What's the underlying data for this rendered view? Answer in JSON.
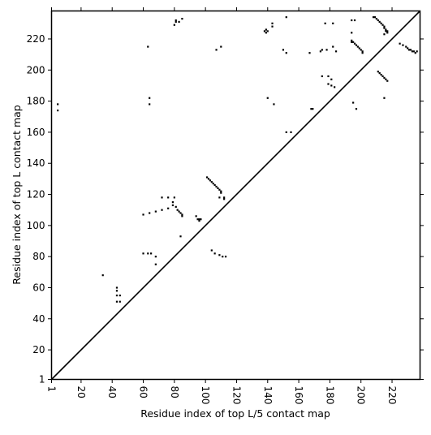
{
  "chart_data": {
    "type": "scatter",
    "title": "",
    "xlabel": "Residue index of top L/5 contact map",
    "ylabel": "Residue index of top L contact map",
    "xlim": [
      1,
      238
    ],
    "ylim": [
      1,
      238
    ],
    "xticks": [
      1,
      20,
      40,
      60,
      80,
      100,
      120,
      140,
      160,
      180,
      200,
      220
    ],
    "yticks": [
      1,
      20,
      40,
      60,
      80,
      100,
      120,
      140,
      160,
      180,
      200,
      220
    ],
    "x_tick_rotation": -90,
    "grid": false,
    "legend": "none",
    "colors": {
      "points": "#000000",
      "diagonal": "#000000",
      "frame": "#000000",
      "background": "#ffffff"
    },
    "diagonal": {
      "from": [
        1,
        1
      ],
      "to": [
        238,
        238
      ]
    },
    "series": [
      {
        "marker": "square",
        "points": [
          [
            5,
            178
          ],
          [
            5,
            174
          ],
          [
            34,
            68
          ],
          [
            43,
            60
          ],
          [
            43,
            58
          ],
          [
            43,
            55
          ],
          [
            45,
            55
          ],
          [
            43,
            51
          ],
          [
            45,
            51
          ],
          [
            60,
            107
          ],
          [
            64,
            108
          ],
          [
            68,
            109
          ],
          [
            72,
            110
          ],
          [
            76,
            111
          ],
          [
            72,
            118
          ],
          [
            76,
            118
          ],
          [
            80,
            118
          ],
          [
            79,
            115
          ],
          [
            79,
            113
          ],
          [
            81,
            112
          ],
          [
            82,
            110
          ],
          [
            83,
            109
          ],
          [
            84,
            108
          ],
          [
            85,
            107
          ],
          [
            85,
            106
          ],
          [
            60,
            82
          ],
          [
            63,
            82
          ],
          [
            65,
            82
          ],
          [
            68,
            80
          ],
          [
            68,
            75
          ],
          [
            84,
            93
          ],
          [
            94,
            106
          ],
          [
            95,
            104
          ],
          [
            96,
            104
          ],
          [
            97,
            104
          ],
          [
            96,
            103
          ],
          [
            101,
            131
          ],
          [
            102,
            130
          ],
          [
            103,
            129
          ],
          [
            104,
            128
          ],
          [
            105,
            127
          ],
          [
            106,
            126
          ],
          [
            107,
            125
          ],
          [
            108,
            124
          ],
          [
            109,
            123
          ],
          [
            110,
            122
          ],
          [
            110,
            121
          ],
          [
            109,
            118
          ],
          [
            112,
            118
          ],
          [
            112,
            117
          ],
          [
            104,
            84
          ],
          [
            106,
            82
          ],
          [
            109,
            81
          ],
          [
            111,
            80
          ],
          [
            113,
            80
          ],
          [
            63,
            215
          ],
          [
            64,
            182
          ],
          [
            64,
            178
          ],
          [
            80,
            229
          ],
          [
            81,
            232
          ],
          [
            81,
            231
          ],
          [
            83,
            231
          ],
          [
            85,
            233
          ],
          [
            107,
            213
          ],
          [
            110,
            215
          ],
          [
            138,
            225
          ],
          [
            139,
            226
          ],
          [
            139,
            224
          ],
          [
            140,
            225
          ],
          [
            140,
            182
          ],
          [
            143,
            228
          ],
          [
            143,
            230
          ],
          [
            144,
            178
          ],
          [
            150,
            213
          ],
          [
            152,
            234
          ],
          [
            152,
            211
          ],
          [
            152,
            160
          ],
          [
            155,
            160
          ],
          [
            167,
            211
          ],
          [
            168,
            175
          ],
          [
            169,
            175
          ],
          [
            174,
            212
          ],
          [
            175,
            196
          ],
          [
            175,
            213
          ],
          [
            177,
            230
          ],
          [
            178,
            213
          ],
          [
            179,
            196
          ],
          [
            179,
            191
          ],
          [
            181,
            194
          ],
          [
            182,
            215
          ],
          [
            182,
            230
          ],
          [
            181,
            190
          ],
          [
            183,
            189
          ],
          [
            184,
            212
          ],
          [
            194,
            219
          ],
          [
            194,
            218
          ],
          [
            195,
            218
          ],
          [
            196,
            217
          ],
          [
            197,
            216
          ],
          [
            198,
            215
          ],
          [
            199,
            214
          ],
          [
            200,
            213
          ],
          [
            201,
            212
          ],
          [
            201,
            211
          ],
          [
            194,
            224
          ],
          [
            194,
            232
          ],
          [
            195,
            179
          ],
          [
            197,
            175
          ],
          [
            196,
            232
          ],
          [
            208,
            234
          ],
          [
            209,
            234
          ],
          [
            210,
            233
          ],
          [
            211,
            232
          ],
          [
            212,
            231
          ],
          [
            213,
            230
          ],
          [
            214,
            229
          ],
          [
            215,
            228
          ],
          [
            215,
            227
          ],
          [
            216,
            226
          ],
          [
            216,
            225
          ],
          [
            217,
            225
          ],
          [
            217,
            224
          ],
          [
            215,
            223
          ],
          [
            215,
            182
          ],
          [
            211,
            199
          ],
          [
            212,
            198
          ],
          [
            213,
            197
          ],
          [
            214,
            196
          ],
          [
            215,
            195
          ],
          [
            216,
            194
          ],
          [
            217,
            193
          ],
          [
            225,
            217
          ],
          [
            227,
            216
          ],
          [
            229,
            215
          ],
          [
            230,
            214
          ],
          [
            231,
            213
          ],
          [
            232,
            213
          ],
          [
            233,
            212
          ],
          [
            234,
            212
          ],
          [
            235,
            211
          ],
          [
            236,
            212
          ]
        ]
      }
    ]
  }
}
